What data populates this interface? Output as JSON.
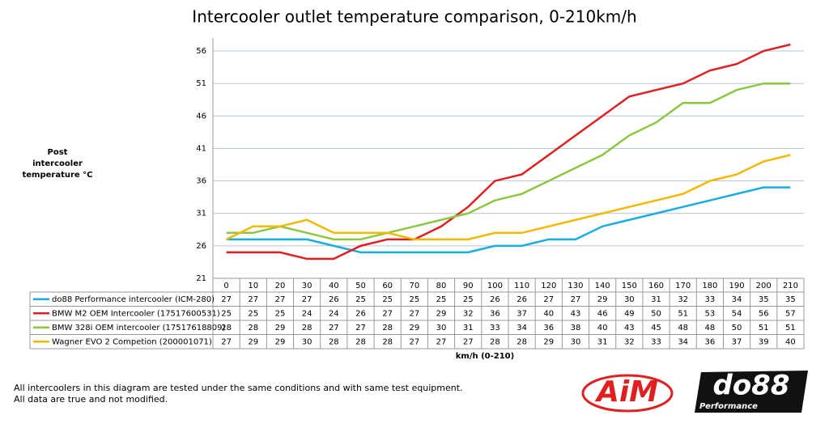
{
  "chart_data": {
    "type": "line",
    "title": "Intercooler outlet temperature comparison, 0-210km/h",
    "y_label": "Post intercooler temperature °C",
    "x_label": "km/h (0-210)",
    "categories": [
      "0",
      "10",
      "20",
      "30",
      "40",
      "50",
      "60",
      "70",
      "80",
      "90",
      "100",
      "110",
      "120",
      "130",
      "140",
      "150",
      "160",
      "170",
      "180",
      "190",
      "200",
      "210"
    ],
    "series": [
      {
        "name": "do88 Performance intercooler (ICM-280)",
        "color": "#1aaede",
        "values": [
          27,
          27,
          27,
          27,
          26,
          25,
          25,
          25,
          25,
          25,
          26,
          26,
          27,
          27,
          29,
          30,
          31,
          32,
          33,
          34,
          35,
          35
        ]
      },
      {
        "name": "BMW M2 OEM Intercooler (17517600531)",
        "color": "#e02020",
        "values": [
          25,
          25,
          25,
          24,
          24,
          26,
          27,
          27,
          29,
          32,
          36,
          37,
          40,
          43,
          46,
          49,
          50,
          51,
          53,
          54,
          56,
          57
        ]
      },
      {
        "name": "BMW 328i OEM intercooler (17517618809)",
        "color": "#8dc63f",
        "values": [
          28,
          28,
          29,
          28,
          27,
          27,
          28,
          29,
          30,
          31,
          33,
          34,
          36,
          38,
          40,
          43,
          45,
          48,
          48,
          50,
          51,
          51
        ]
      },
      {
        "name": "Wagner EVO 2 Competion (200001071)",
        "color": "#f5b800",
        "values": [
          27,
          29,
          29,
          30,
          28,
          28,
          28,
          27,
          27,
          27,
          28,
          28,
          29,
          30,
          31,
          32,
          33,
          34,
          36,
          37,
          39,
          40
        ]
      }
    ],
    "ylim": [
      21,
      58
    ],
    "yticks": [
      21,
      26,
      31,
      36,
      41,
      46,
      51,
      56
    ],
    "grid": true,
    "footnote": [
      "All intercoolers in this diagram are tested under the same conditions and with same test equipment.",
      "All data are true and not modified."
    ],
    "logos": {
      "aim": "AiM",
      "do88": "do88",
      "do88_sub": "Performance"
    }
  }
}
